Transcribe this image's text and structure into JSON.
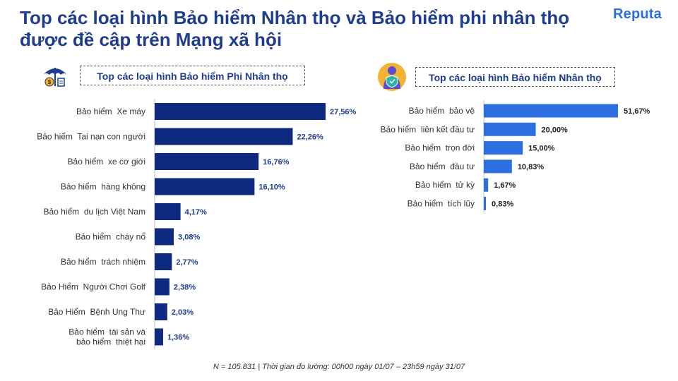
{
  "header": {
    "title_line1": "Top các loại hình Bảo hiểm Nhân thọ và Bảo hiểm phi nhân thọ",
    "title_line2": "được đề cập trên Mạng xã hội",
    "logo": "Reputa"
  },
  "footnote": "N = 105.831 | Thời gian đo lường: 00h00 ngày 01/07 – 23h59 ngày 31/07",
  "icons": {
    "left": "umbrella-money-icon",
    "right": "person-shield-icon"
  },
  "colors": {
    "left_bar": "#0d2a80",
    "right_bar": "#2d6fe0",
    "title": "#1f3d8f",
    "logo": "#2d6fe0"
  },
  "chart_data": [
    {
      "type": "bar",
      "orientation": "horizontal",
      "title": "Top các loại hình Bảo hiểm Phi Nhân thọ",
      "unit": "%",
      "categories": [
        [
          "Bảo hiểm  Xe máy"
        ],
        [
          "Bảo hiểm  Tai nạn con người"
        ],
        [
          "Bảo hiểm  xe cơ giới"
        ],
        [
          "Bảo hiểm  hàng không"
        ],
        [
          "Bảo hiểm  du lịch Việt Nam"
        ],
        [
          "Bảo hiểm  cháy nổ"
        ],
        [
          "Bảo hiểm  trách nhiệm"
        ],
        [
          "Bảo Hiểm  Người Chơi Golf"
        ],
        [
          "Bảo Hiểm  Bệnh Ung Thư"
        ],
        [
          "Bảo hiểm  tài sản và",
          "bảo hiểm  thiệt hại"
        ]
      ],
      "values": [
        27.56,
        22.26,
        16.76,
        16.1,
        4.17,
        3.08,
        2.77,
        2.38,
        2.03,
        1.36
      ],
      "labels": [
        "27,56%",
        "22,26%",
        "16,76%",
        "16,10%",
        "4,17%",
        "3,08%",
        "2,77%",
        "2,38%",
        "2,03%",
        "1,36%"
      ],
      "color": "#0d2a80"
    },
    {
      "type": "bar",
      "orientation": "horizontal",
      "title": "Top các loại hình Bảo hiểm Nhân thọ",
      "unit": "%",
      "categories": [
        [
          "Bảo hiểm  bảo vệ"
        ],
        [
          "Bảo hiểm  liên kết đầu tư"
        ],
        [
          "Bảo hiểm  trọn đời"
        ],
        [
          "Bảo hiểm  đầu tư"
        ],
        [
          "Bảo hiểm  tử kỳ"
        ],
        [
          "Bảo hiểm  tích lũy"
        ]
      ],
      "values": [
        51.67,
        20.0,
        15.0,
        10.83,
        1.67,
        0.83
      ],
      "labels": [
        "51,67%",
        "20,00%",
        "15,00%",
        "10,83%",
        "1,67%",
        "0,83%"
      ],
      "color": "#2d6fe0"
    }
  ]
}
